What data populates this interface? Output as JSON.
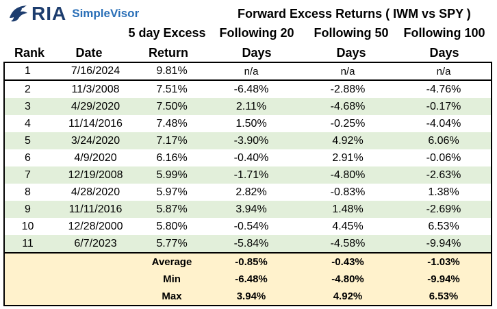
{
  "brand": {
    "name": "RIA",
    "product": "SimpleVisor"
  },
  "title": "Forward Excess Returns ( IWM vs SPY )",
  "headers": {
    "rank": "Rank",
    "date": "Date",
    "ret_line1": "5 day Excess",
    "ret_line2": "Return",
    "f20_line1": "Following  20",
    "f50_line1": "Following  50",
    "f100_line1": "Following  100",
    "days": "Days"
  },
  "rows": [
    {
      "rank": "1",
      "date": "7/16/2024",
      "ret": "9.81%",
      "f20": "n/a",
      "f50": "n/a",
      "f100": "n/a"
    },
    {
      "rank": "2",
      "date": "11/3/2008",
      "ret": "7.51%",
      "f20": "-6.48%",
      "f50": "-2.88%",
      "f100": "-4.76%"
    },
    {
      "rank": "3",
      "date": "4/29/2020",
      "ret": "7.50%",
      "f20": "2.11%",
      "f50": "-4.68%",
      "f100": "-0.17%"
    },
    {
      "rank": "4",
      "date": "11/14/2016",
      "ret": "7.48%",
      "f20": "1.50%",
      "f50": "-0.25%",
      "f100": "-4.04%"
    },
    {
      "rank": "5",
      "date": "3/24/2020",
      "ret": "7.17%",
      "f20": "-3.90%",
      "f50": "4.92%",
      "f100": "6.06%"
    },
    {
      "rank": "6",
      "date": "4/9/2020",
      "ret": "6.16%",
      "f20": "-0.40%",
      "f50": "2.91%",
      "f100": "-0.06%"
    },
    {
      "rank": "7",
      "date": "12/19/2008",
      "ret": "5.99%",
      "f20": "-1.71%",
      "f50": "-4.80%",
      "f100": "-2.63%"
    },
    {
      "rank": "8",
      "date": "4/28/2020",
      "ret": "5.97%",
      "f20": "2.82%",
      "f50": "-0.83%",
      "f100": "1.38%"
    },
    {
      "rank": "9",
      "date": "11/11/2016",
      "ret": "5.87%",
      "f20": "3.94%",
      "f50": "1.48%",
      "f100": "-2.69%"
    },
    {
      "rank": "10",
      "date": "12/28/2000",
      "ret": "5.80%",
      "f20": "-0.54%",
      "f50": "4.45%",
      "f100": "6.53%"
    },
    {
      "rank": "11",
      "date": "6/7/2023",
      "ret": "5.77%",
      "f20": "-5.84%",
      "f50": "-4.58%",
      "f100": "-9.94%"
    }
  ],
  "summary": [
    {
      "label": "Average",
      "f20": "-0.85%",
      "f50": "-0.43%",
      "f100": "-1.03%"
    },
    {
      "label": "Min",
      "f20": "-6.48%",
      "f50": "-4.80%",
      "f100": "-9.94%"
    },
    {
      "label": "Max",
      "f20": "3.94%",
      "f50": "4.92%",
      "f100": "6.53%"
    }
  ],
  "colors": {
    "row_shade": "#e2efda",
    "summary_bg": "#fff2cc",
    "brand_dark": "#1d3d6e",
    "brand_blue": "#2a6fb7"
  }
}
